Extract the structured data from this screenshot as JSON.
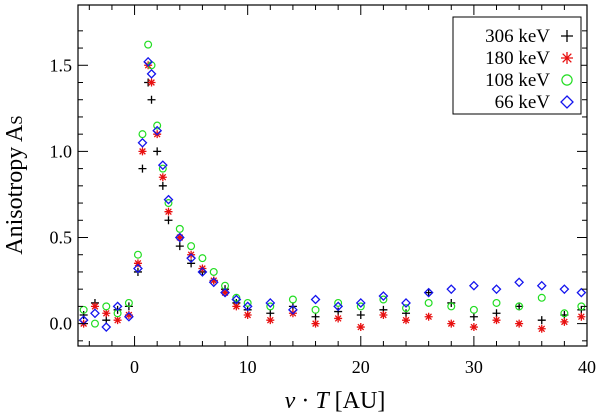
{
  "chart_data": {
    "type": "scatter",
    "title": "",
    "xlabel": "v · T [AU]",
    "xlabel_parts": {
      "v": "v",
      "dot": " · ",
      "T": "T",
      "unit": " [AU]"
    },
    "ylabel": "Anisotropy AS",
    "ylabel_parts": {
      "main": "Anisotropy A",
      "sub": "S"
    },
    "xlim": [
      -5,
      40
    ],
    "ylim": [
      -0.13,
      1.85
    ],
    "x_ticks": [
      0,
      10,
      20,
      30,
      40
    ],
    "x_tick_labels": [
      "0",
      "10",
      "20",
      "30",
      "40"
    ],
    "y_ticks": [
      0.0,
      0.5,
      1.0,
      1.5
    ],
    "y_tick_labels": [
      "0.0",
      "0.5",
      "1.0",
      "1.5"
    ],
    "legend_position": "top-right",
    "series": [
      {
        "name": "306 keV",
        "marker": "plus",
        "color": "#000000",
        "points": [
          [
            -4.5,
            0.05
          ],
          [
            -3.5,
            0.12
          ],
          [
            -2.5,
            0.02
          ],
          [
            -1.5,
            0.08
          ],
          [
            -0.5,
            0.1
          ],
          [
            0.3,
            0.3
          ],
          [
            0.7,
            0.9
          ],
          [
            1.2,
            1.4
          ],
          [
            1.5,
            1.3
          ],
          [
            2,
            1.0
          ],
          [
            2.5,
            0.8
          ],
          [
            3,
            0.6
          ],
          [
            4,
            0.45
          ],
          [
            5,
            0.35
          ],
          [
            6,
            0.3
          ],
          [
            7,
            0.25
          ],
          [
            8,
            0.2
          ],
          [
            9,
            0.12
          ],
          [
            10,
            0.08
          ],
          [
            12,
            0.06
          ],
          [
            14,
            0.1
          ],
          [
            16,
            0.04
          ],
          [
            18,
            0.07
          ],
          [
            20,
            0.05
          ],
          [
            22,
            0.08
          ],
          [
            24,
            0.06
          ],
          [
            26,
            0.18
          ],
          [
            28,
            0.12
          ],
          [
            30,
            0.04
          ],
          [
            32,
            0.06
          ],
          [
            34,
            0.1
          ],
          [
            36,
            0.02
          ],
          [
            38,
            0.05
          ],
          [
            39.5,
            0.08
          ]
        ]
      },
      {
        "name": "180 keV",
        "marker": "asterisk",
        "color": "#e81010",
        "points": [
          [
            -4.5,
            0.0
          ],
          [
            -3.5,
            0.1
          ],
          [
            -2.5,
            0.06
          ],
          [
            -1.5,
            0.02
          ],
          [
            -0.5,
            0.05
          ],
          [
            0.3,
            0.35
          ],
          [
            0.7,
            1.0
          ],
          [
            1.2,
            1.5
          ],
          [
            1.5,
            1.4
          ],
          [
            2,
            1.1
          ],
          [
            2.5,
            0.85
          ],
          [
            3,
            0.65
          ],
          [
            4,
            0.5
          ],
          [
            5,
            0.4
          ],
          [
            6,
            0.32
          ],
          [
            7,
            0.25
          ],
          [
            8,
            0.18
          ],
          [
            9,
            0.1
          ],
          [
            10,
            0.05
          ],
          [
            12,
            0.02
          ],
          [
            14,
            0.06
          ],
          [
            16,
            0.0
          ],
          [
            18,
            0.03
          ],
          [
            20,
            -0.02
          ],
          [
            22,
            0.05
          ],
          [
            24,
            0.02
          ],
          [
            26,
            0.04
          ],
          [
            28,
            0.0
          ],
          [
            30,
            -0.02
          ],
          [
            32,
            0.02
          ],
          [
            34,
            0.0
          ],
          [
            36,
            -0.03
          ],
          [
            38,
            0.01
          ],
          [
            39.5,
            0.04
          ]
        ]
      },
      {
        "name": "108 keV",
        "marker": "circle",
        "color": "#22dd22",
        "points": [
          [
            -4.5,
            0.08
          ],
          [
            -3.5,
            0.0
          ],
          [
            -2.5,
            0.1
          ],
          [
            -1.5,
            0.06
          ],
          [
            -0.5,
            0.12
          ],
          [
            0.3,
            0.4
          ],
          [
            0.7,
            1.1
          ],
          [
            1.2,
            1.62
          ],
          [
            1.5,
            1.5
          ],
          [
            2,
            1.15
          ],
          [
            2.5,
            0.9
          ],
          [
            3,
            0.7
          ],
          [
            4,
            0.55
          ],
          [
            5,
            0.45
          ],
          [
            6,
            0.38
          ],
          [
            7,
            0.3
          ],
          [
            8,
            0.22
          ],
          [
            9,
            0.15
          ],
          [
            10,
            0.12
          ],
          [
            12,
            0.1
          ],
          [
            14,
            0.14
          ],
          [
            16,
            0.08
          ],
          [
            18,
            0.12
          ],
          [
            20,
            0.1
          ],
          [
            22,
            0.14
          ],
          [
            24,
            0.09
          ],
          [
            26,
            0.12
          ],
          [
            28,
            0.1
          ],
          [
            30,
            0.08
          ],
          [
            32,
            0.12
          ],
          [
            34,
            0.1
          ],
          [
            36,
            0.15
          ],
          [
            38,
            0.06
          ],
          [
            39.5,
            0.1
          ]
        ]
      },
      {
        "name": "66 keV",
        "marker": "diamond",
        "color": "#1515ee",
        "points": [
          [
            -4.5,
            0.02
          ],
          [
            -3.5,
            0.06
          ],
          [
            -2.5,
            -0.02
          ],
          [
            -1.5,
            0.1
          ],
          [
            -0.5,
            0.04
          ],
          [
            0.3,
            0.32
          ],
          [
            0.7,
            1.05
          ],
          [
            1.2,
            1.52
          ],
          [
            1.5,
            1.45
          ],
          [
            2,
            1.12
          ],
          [
            2.5,
            0.92
          ],
          [
            3,
            0.72
          ],
          [
            4,
            0.5
          ],
          [
            5,
            0.38
          ],
          [
            6,
            0.3
          ],
          [
            7,
            0.24
          ],
          [
            8,
            0.18
          ],
          [
            9,
            0.14
          ],
          [
            10,
            0.1
          ],
          [
            12,
            0.12
          ],
          [
            14,
            0.08
          ],
          [
            16,
            0.14
          ],
          [
            18,
            0.1
          ],
          [
            20,
            0.12
          ],
          [
            22,
            0.16
          ],
          [
            24,
            0.12
          ],
          [
            26,
            0.18
          ],
          [
            28,
            0.2
          ],
          [
            30,
            0.22
          ],
          [
            32,
            0.2
          ],
          [
            34,
            0.24
          ],
          [
            36,
            0.22
          ],
          [
            38,
            0.2
          ],
          [
            39.5,
            0.18
          ]
        ]
      }
    ]
  }
}
